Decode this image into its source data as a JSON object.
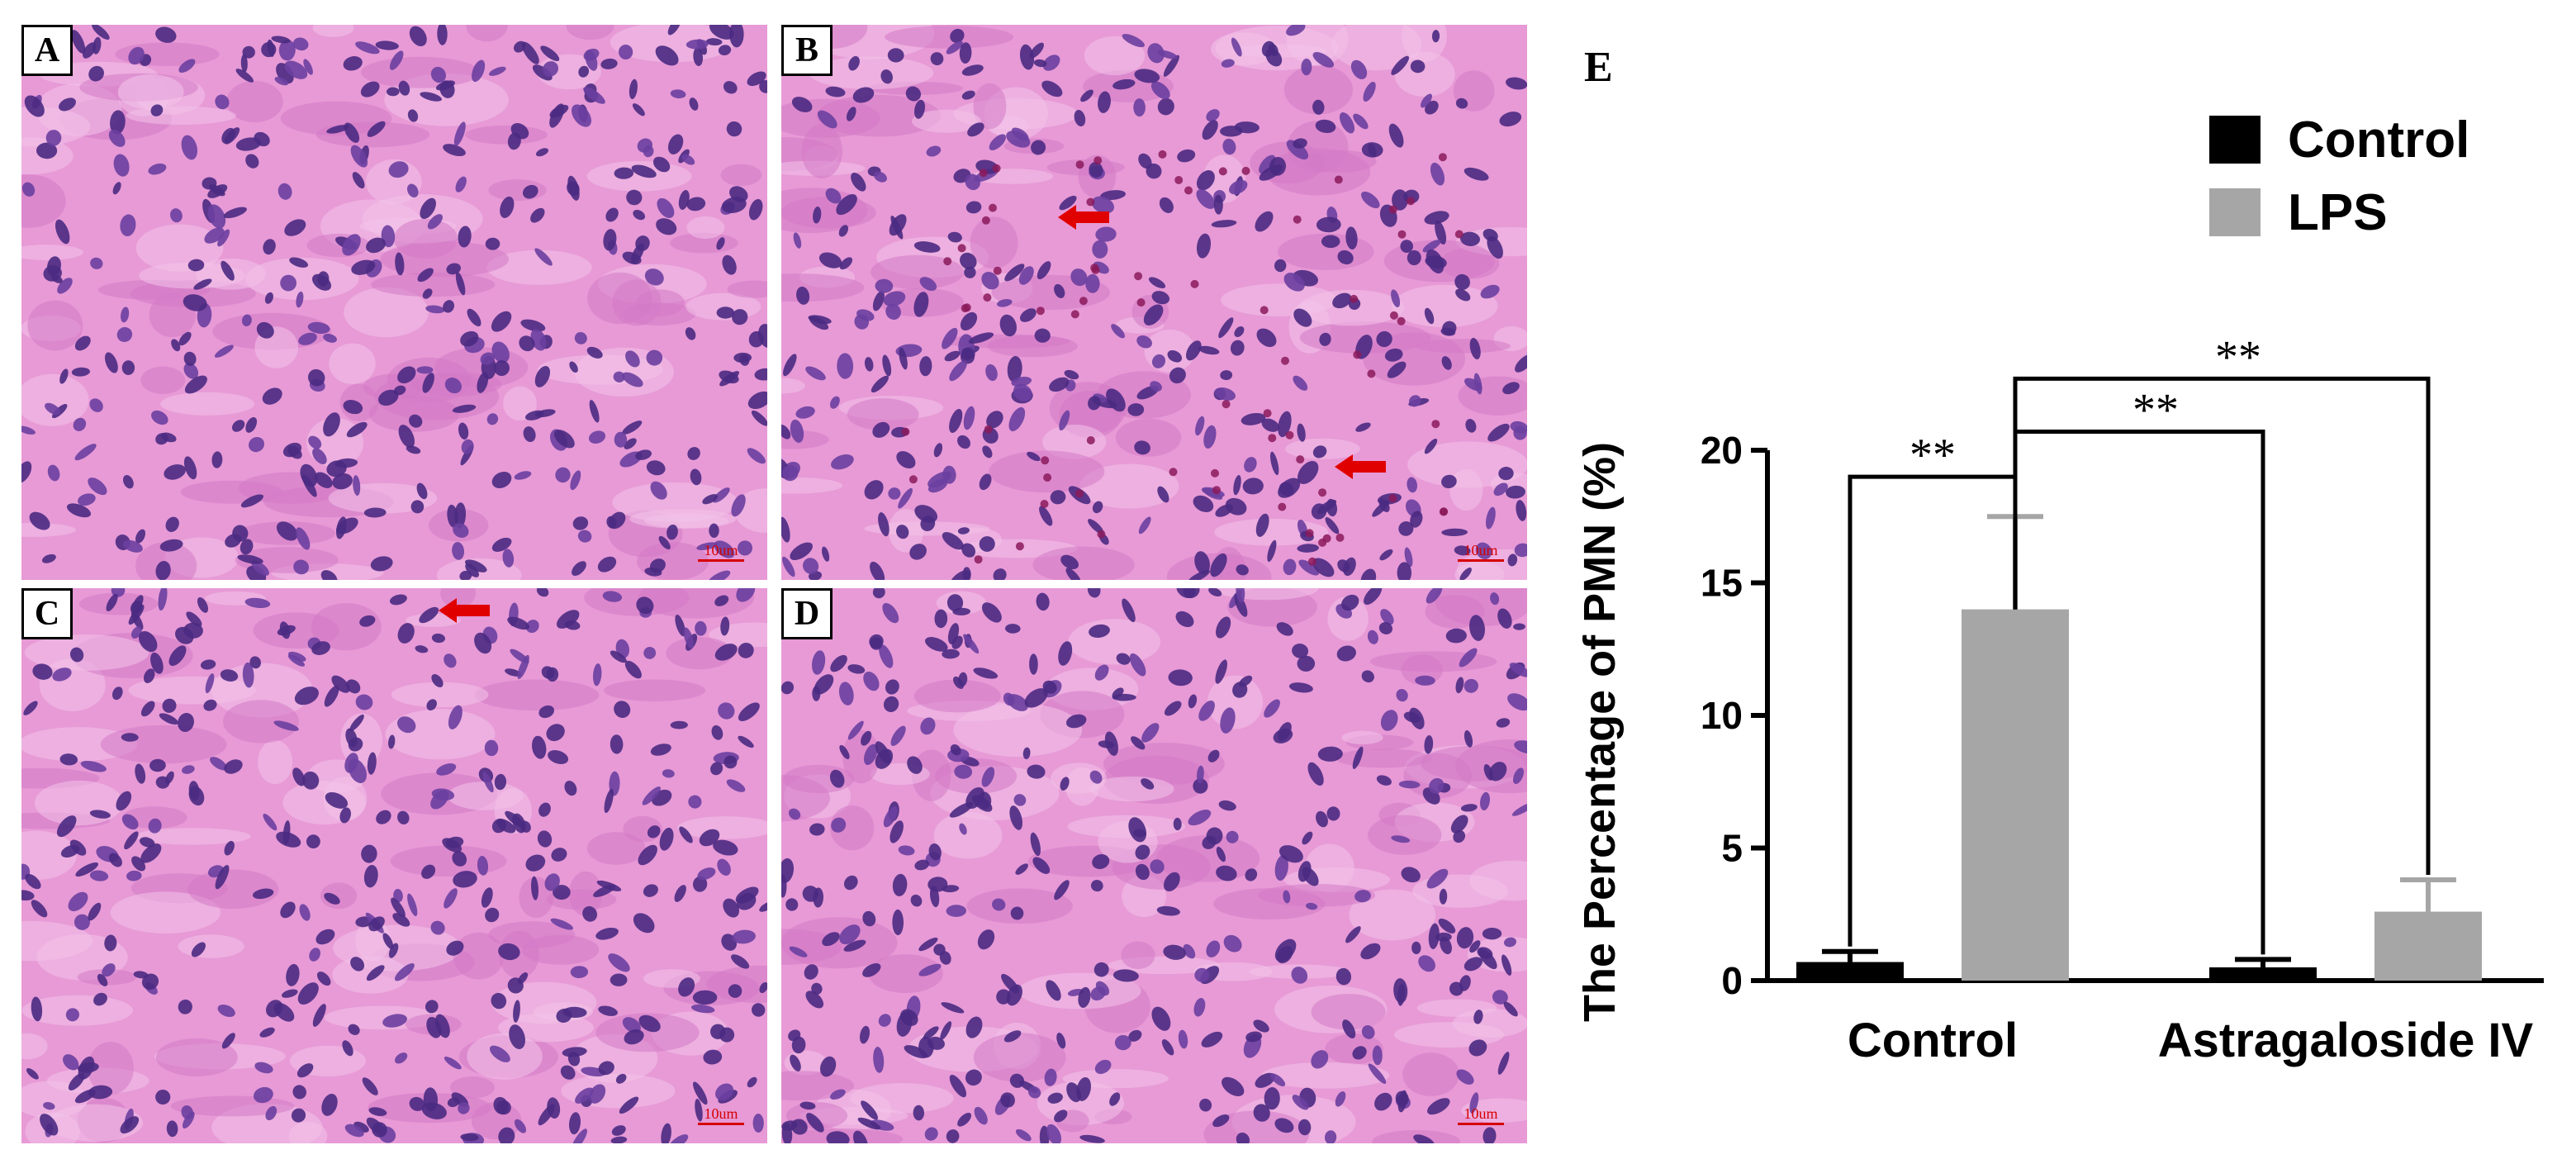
{
  "panels": [
    {
      "letter": "A",
      "scale": "10um"
    },
    {
      "letter": "B",
      "scale": "10um"
    },
    {
      "letter": "C",
      "scale": "10um"
    },
    {
      "letter": "D",
      "scale": "10um"
    }
  ],
  "colors": {
    "stain_background": "#e79ad6",
    "nucleus": "#4a2a82",
    "arrow": "#e00000",
    "control": "#000000",
    "lps": "#a6a6a6"
  },
  "chart_data": {
    "type": "bar",
    "panel_label": "E",
    "categories": [
      "Control",
      "Astragaloside IV"
    ],
    "series": [
      {
        "name": "Control",
        "color": "#000000",
        "values": [
          0.7,
          0.5
        ],
        "errors": [
          0.4,
          0.3
        ]
      },
      {
        "name": "LPS",
        "color": "#a6a6a6",
        "values": [
          14.0,
          2.6
        ],
        "errors": [
          3.5,
          1.2
        ]
      }
    ],
    "ylabel": "The Percentage of PMN (%)",
    "ylim": [
      0,
      20
    ],
    "yticks": [
      "0",
      "5",
      "10",
      "15",
      "20"
    ],
    "legend_position": "top-right",
    "annotations": [
      "**",
      "**",
      "**"
    ]
  }
}
